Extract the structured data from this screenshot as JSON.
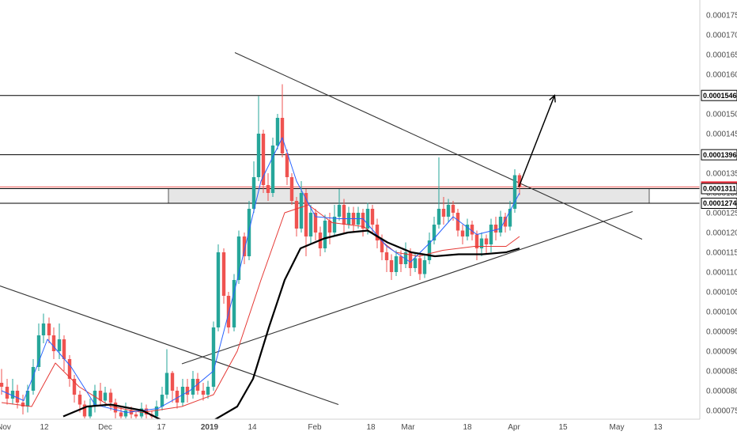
{
  "chart_data": {
    "type": "candlestick",
    "x_ticks": [
      "Nov",
      "12",
      "Dec",
      "17",
      "2019",
      "14",
      "Feb",
      "18",
      "Mar",
      "18",
      "Apr",
      "15",
      "May",
      "13"
    ],
    "y_ticks": [
      "0.00007500",
      "0.00008000",
      "0.00008500",
      "0.00009000",
      "0.00009500",
      "0.00010000",
      "0.00010500",
      "0.00011000",
      "0.00011500",
      "0.00012000",
      "0.00012500",
      "0.00013000",
      "0.00013500",
      "0.00014000",
      "0.00014500",
      "0.00015000",
      "0.00015500",
      "0.00016000",
      "0.00016500",
      "0.00017000",
      "0.00017500"
    ],
    "ylim": [
      7.28e-05,
      0.0001788
    ],
    "price_labels": [
      {
        "value": 0.00015466,
        "text": "0.00015466",
        "style": "line"
      },
      {
        "value": 0.00013967,
        "text": "0.00013967",
        "style": "line"
      },
      {
        "value": 0.00013154,
        "text": "0.00013154",
        "style": "current"
      },
      {
        "value": 0.0001311,
        "text": "0.00013110",
        "style": "line"
      },
      {
        "value": 0.0001274,
        "text": "0.00012740",
        "style": "line"
      }
    ],
    "horizontal_levels": [
      0.00015466,
      0.00013967,
      0.0001311,
      0.0001274
    ],
    "current_price": 0.00013154,
    "zone": {
      "from": 0.0001274,
      "to": 0.0001311
    },
    "trendlines": [
      {
        "name": "upper-descending",
        "from": [
          297,
          0.0001655
        ],
        "to": [
          812,
          0.0001183
        ]
      },
      {
        "name": "ascending-support",
        "from": [
          230,
          8.68e-05
        ],
        "to": [
          800,
          0.0001253
        ]
      },
      {
        "name": "old-descending",
        "from": [
          0,
          0.0001065
        ],
        "to": [
          428,
          7.65e-05
        ]
      }
    ],
    "arrow": {
      "from": [
        656,
        0.0001315
      ],
      "to": [
        701,
        0.0001545
      ]
    },
    "candles": [
      [
        2,
        8.2e-05,
        8.1e-05,
        8.55e-05,
        7.9e-05
      ],
      [
        9,
        8.1e-05,
        7.8e-05,
        8.3e-05,
        7.65e-05
      ],
      [
        16,
        7.8e-05,
        8e-05,
        8.3e-05,
        7.65e-05
      ],
      [
        22,
        8e-05,
        7.7e-05,
        8.15e-05,
        7.55e-05
      ],
      [
        29,
        7.7e-05,
        7.6e-05,
        7.9e-05,
        7.4e-05
      ],
      [
        35,
        7.6e-05,
        8e-05,
        8.15e-05,
        7.45e-05
      ],
      [
        42,
        8e-05,
        8.6e-05,
        8.8e-05,
        7.9e-05
      ],
      [
        49,
        8.6e-05,
        9.4e-05,
        9.7e-05,
        8.5e-05
      ],
      [
        55,
        9.4e-05,
        9.7e-05,
        9.95e-05,
        9.2e-05
      ],
      [
        62,
        9.7e-05,
        9.4e-05,
        9.85e-05,
        9.2e-05
      ],
      [
        68,
        9.4e-05,
        9e-05,
        9.6e-05,
        8.8e-05
      ],
      [
        75,
        9e-05,
        9.3e-05,
        9.7e-05,
        8.8e-05
      ],
      [
        81,
        9.3e-05,
        8.8e-05,
        9.4e-05,
        8.5e-05
      ],
      [
        88,
        8.8e-05,
        8.3e-05,
        8.9e-05,
        8.1e-05
      ],
      [
        94,
        8.3e-05,
        7.9e-05,
        8.4e-05,
        7.7e-05
      ],
      [
        101,
        7.9e-05,
        7.65e-05,
        8e-05,
        7.45e-05
      ],
      [
        107,
        7.65e-05,
        7.35e-05,
        7.75e-05,
        7.3e-05
      ],
      [
        114,
        7.35e-05,
        7.6e-05,
        7.8e-05,
        7.3e-05
      ],
      [
        120,
        7.6e-05,
        8e-05,
        8.15e-05,
        7.45e-05
      ],
      [
        127,
        8e-05,
        7.75e-05,
        8.2e-05,
        7.65e-05
      ],
      [
        133,
        7.75e-05,
        7.95e-05,
        8.1e-05,
        7.6e-05
      ],
      [
        140,
        7.95e-05,
        7.7e-05,
        8.05e-05,
        7.5e-05
      ],
      [
        146,
        7.7e-05,
        7.45e-05,
        7.8e-05,
        7.3e-05
      ],
      [
        153,
        7.45e-05,
        7.35e-05,
        7.6e-05,
        7.3e-05
      ],
      [
        159,
        7.35e-05,
        7.5e-05,
        7.7e-05,
        7.3e-05
      ],
      [
        166,
        7.5e-05,
        7.4e-05,
        7.6e-05,
        7.3e-05
      ],
      [
        172,
        7.4e-05,
        7.35e-05,
        7.5e-05,
        7.3e-05
      ],
      [
        179,
        7.35e-05,
        7.55e-05,
        7.7e-05,
        7.3e-05
      ],
      [
        185,
        7.55e-05,
        7.4e-05,
        7.65e-05,
        7.3e-05
      ],
      [
        192,
        7.4e-05,
        7.35e-05,
        7.5e-05,
        7.3e-05
      ],
      [
        198,
        7.35e-05,
        7.6e-05,
        7.75e-05,
        7.3e-05
      ],
      [
        205,
        7.6e-05,
        7.9e-05,
        8.1e-05,
        7.5e-05
      ],
      [
        211,
        7.9e-05,
        8.45e-05,
        9.05e-05,
        7.8e-05
      ],
      [
        218,
        8.45e-05,
        8e-05,
        8.5e-05,
        7.7e-05
      ],
      [
        224,
        8e-05,
        7.7e-05,
        8.1e-05,
        7.55e-05
      ],
      [
        231,
        7.7e-05,
        8.1e-05,
        8.3e-05,
        7.6e-05
      ],
      [
        237,
        8.1e-05,
        7.9e-05,
        8.3e-05,
        7.7e-05
      ],
      [
        244,
        7.9e-05,
        8.3e-05,
        8.5e-05,
        7.8e-05
      ],
      [
        250,
        8.3e-05,
        8e-05,
        8.45e-05,
        7.9e-05
      ],
      [
        257,
        8e-05,
        7.9e-05,
        8.2e-05,
        7.75e-05
      ],
      [
        263,
        7.9e-05,
        8.1e-05,
        8.25e-05,
        7.8e-05
      ],
      [
        270,
        8.1e-05,
        9.6e-05,
        9.75e-05,
        8e-05
      ],
      [
        276,
        9.6e-05,
        0.000115,
        0.000117,
        9.5e-05
      ],
      [
        283,
        0.000115,
        0.000104,
        0.000116,
        0.000102
      ],
      [
        289,
        0.000104,
        9.6e-05,
        0.000105,
        9.45e-05
      ],
      [
        296,
        9.6e-05,
        0.000108,
        0.0001095,
        9.5e-05
      ],
      [
        302,
        0.000108,
        0.000119,
        0.0001205,
        0.000107
      ],
      [
        309,
        0.000119,
        0.000114,
        0.00012,
        0.000112
      ],
      [
        315,
        0.000114,
        0.000126,
        0.000128,
        0.000113
      ],
      [
        321,
        0.000126,
        0.000134,
        0.000138,
        0.000125
      ],
      [
        327,
        0.000134,
        0.000145,
        0.0001545,
        0.000133
      ],
      [
        333,
        0.000145,
        0.000132,
        0.000146,
        0.00013
      ],
      [
        339,
        0.000132,
        0.00013,
        0.000135,
        0.000128
      ],
      [
        345,
        0.00013,
        0.000142,
        0.000144,
        0.000129
      ],
      [
        351,
        0.000142,
        0.000149,
        0.00015,
        0.000141
      ],
      [
        357,
        0.000149,
        0.00014,
        0.0001575,
        0.000139
      ],
      [
        363,
        0.00014,
        0.000134,
        0.000141,
        0.000132
      ],
      [
        369,
        0.000134,
        0.000128,
        0.000135,
        0.000127
      ],
      [
        375,
        0.000128,
        0.000121,
        0.000129,
        0.000119
      ],
      [
        381,
        0.000121,
        0.00013,
        0.000133,
        0.00012
      ],
      [
        387,
        0.00013,
        0.000119,
        0.000131,
        0.000114
      ],
      [
        393,
        0.000119,
        0.000125,
        0.000127,
        0.000117
      ],
      [
        399,
        0.000125,
        0.00012,
        0.000126,
        0.000118
      ],
      [
        405,
        0.00012,
        0.000116,
        0.0001215,
        0.000114
      ],
      [
        411,
        0.000116,
        0.000123,
        0.0001245,
        0.000115
      ],
      [
        417,
        0.000123,
        0.00012,
        0.000125,
        0.000117
      ],
      [
        423,
        0.00012,
        0.000124,
        0.000127,
        0.000119
      ],
      [
        429,
        0.000124,
        0.000127,
        0.000131,
        0.000123
      ],
      [
        435,
        0.000127,
        0.000122,
        0.0001285,
        0.00012
      ],
      [
        441,
        0.000122,
        0.000125,
        0.0001265,
        0.000121
      ],
      [
        447,
        0.000125,
        0.000122,
        0.0001265,
        0.00012
      ],
      [
        453,
        0.000122,
        0.000125,
        0.0001265,
        0.000121
      ],
      [
        459,
        0.000125,
        0.000121,
        0.000126,
        0.000119
      ],
      [
        465,
        0.000121,
        0.000126,
        0.0001275,
        0.0001195
      ],
      [
        471,
        0.000126,
        0.000122,
        0.000127,
        0.00012
      ],
      [
        477,
        0.000122,
        0.000118,
        0.0001235,
        0.000116
      ],
      [
        483,
        0.000118,
        0.000115,
        0.0001195,
        0.000113
      ],
      [
        489,
        0.000115,
        0.000113,
        0.0001165,
        0.00011
      ],
      [
        495,
        0.000113,
        0.00011,
        0.0001145,
        0.000108
      ],
      [
        501,
        0.00011,
        0.000114,
        0.0001155,
        0.000109
      ],
      [
        507,
        0.000114,
        0.000112,
        0.0001155,
        0.00011
      ],
      [
        513,
        0.000112,
        0.000115,
        0.0001175,
        0.000111
      ],
      [
        519,
        0.000115,
        0.000111,
        0.000116,
        0.000109
      ],
      [
        525,
        0.000111,
        0.0001135,
        0.000115,
        0.00011
      ],
      [
        531,
        0.0001135,
        0.0001095,
        0.0001145,
        0.000108
      ],
      [
        537,
        0.0001095,
        0.000113,
        0.0001145,
        0.0001085
      ],
      [
        543,
        0.000113,
        0.000118,
        0.00012,
        0.000112
      ],
      [
        549,
        0.000118,
        0.000122,
        0.000124,
        0.000117
      ],
      [
        555,
        0.000122,
        0.000126,
        0.000139,
        0.000121
      ],
      [
        561,
        0.000126,
        0.000124,
        0.000129,
        0.000122
      ],
      [
        567,
        0.000124,
        0.000127,
        0.0001285,
        0.0001225
      ],
      [
        573,
        0.000127,
        0.000125,
        0.000128,
        0.000123
      ],
      [
        579,
        0.000125,
        0.0001205,
        0.000126,
        0.000119
      ],
      [
        585,
        0.0001205,
        0.000119,
        0.000122,
        0.000117
      ],
      [
        591,
        0.000119,
        0.000122,
        0.0001235,
        0.000118
      ],
      [
        597,
        0.000122,
        0.0001195,
        0.000123,
        0.000118
      ],
      [
        603,
        0.0001195,
        0.000116,
        0.0001205,
        0.000113
      ],
      [
        609,
        0.000116,
        0.0001185,
        0.00012,
        0.000114
      ],
      [
        615,
        0.0001185,
        0.000117,
        0.0001195,
        0.0001145
      ],
      [
        621,
        0.000117,
        0.000122,
        0.0001235,
        0.000115
      ],
      [
        627,
        0.000122,
        0.00012,
        0.000124,
        0.000118
      ],
      [
        633,
        0.00012,
        0.000124,
        0.0001255,
        0.000119
      ],
      [
        639,
        0.000124,
        0.0001215,
        0.000125,
        0.00012
      ],
      [
        645,
        0.0001215,
        0.000126,
        0.000128,
        0.0001205
      ],
      [
        651,
        0.000126,
        0.0001345,
        0.000136,
        0.000125
      ],
      [
        657,
        0.0001345,
        0.0001315,
        0.000135,
        0.0001295
      ]
    ],
    "ma_fast": [
      [
        2,
        8e-05
      ],
      [
        30,
        7.75e-05
      ],
      [
        60,
        9.3e-05
      ],
      [
        90,
        8.6e-05
      ],
      [
        120,
        7.65e-05
      ],
      [
        160,
        7.45e-05
      ],
      [
        200,
        7.55e-05
      ],
      [
        240,
        8e-05
      ],
      [
        270,
        8.5e-05
      ],
      [
        300,
        0.000108
      ],
      [
        330,
        0.000133
      ],
      [
        357,
        0.000144
      ],
      [
        375,
        0.000133
      ],
      [
        399,
        0.000124
      ],
      [
        429,
        0.0001235
      ],
      [
        459,
        0.0001235
      ],
      [
        489,
        0.0001165
      ],
      [
        519,
        0.0001125
      ],
      [
        549,
        0.0001185
      ],
      [
        573,
        0.000124
      ],
      [
        603,
        0.0001195
      ],
      [
        633,
        0.000121
      ],
      [
        657,
        0.00013
      ]
    ],
    "ma_mid": [
      [
        2,
        7.7e-05
      ],
      [
        40,
        7.6e-05
      ],
      [
        70,
        8.7e-05
      ],
      [
        100,
        8.1e-05
      ],
      [
        140,
        7.6e-05
      ],
      [
        180,
        7.45e-05
      ],
      [
        230,
        7.6e-05
      ],
      [
        270,
        7.9e-05
      ],
      [
        300,
        9e-05
      ],
      [
        330,
        0.000108
      ],
      [
        360,
        0.000125
      ],
      [
        390,
        0.000127
      ],
      [
        420,
        0.0001225
      ],
      [
        460,
        0.0001215
      ],
      [
        500,
        0.000115
      ],
      [
        530,
        0.000114
      ],
      [
        560,
        0.0001155
      ],
      [
        600,
        0.0001165
      ],
      [
        640,
        0.0001165
      ],
      [
        657,
        0.000119
      ]
    ],
    "ma_slow": [
      [
        80,
        7.35e-05
      ],
      [
        110,
        7.6e-05
      ],
      [
        140,
        7.65e-05
      ],
      [
        180,
        7.5e-05
      ],
      [
        210,
        7.2e-05
      ],
      [
        270,
        7.25e-05
      ],
      [
        300,
        7.6e-05
      ],
      [
        320,
        8.3e-05
      ],
      [
        340,
        9.6e-05
      ],
      [
        360,
        0.000108
      ],
      [
        380,
        0.000116
      ],
      [
        410,
        0.0001185
      ],
      [
        440,
        0.00012
      ],
      [
        465,
        0.0001205
      ],
      [
        490,
        0.0001175
      ],
      [
        520,
        0.000115
      ],
      [
        550,
        0.000114
      ],
      [
        580,
        0.0001145
      ],
      [
        610,
        0.0001145
      ],
      [
        640,
        0.000115
      ],
      [
        657,
        0.000116
      ]
    ],
    "colors": {
      "up": "#26a69a",
      "down": "#ef5350",
      "ma_fast": "#2962ff",
      "ma_mid": "#e53935",
      "ma_slow": "#000000",
      "trendline": "#333333",
      "level": "#000000",
      "zone_fill": "#e6e6e6",
      "current_line": "#e53935",
      "current_badge": "#f23645"
    }
  }
}
